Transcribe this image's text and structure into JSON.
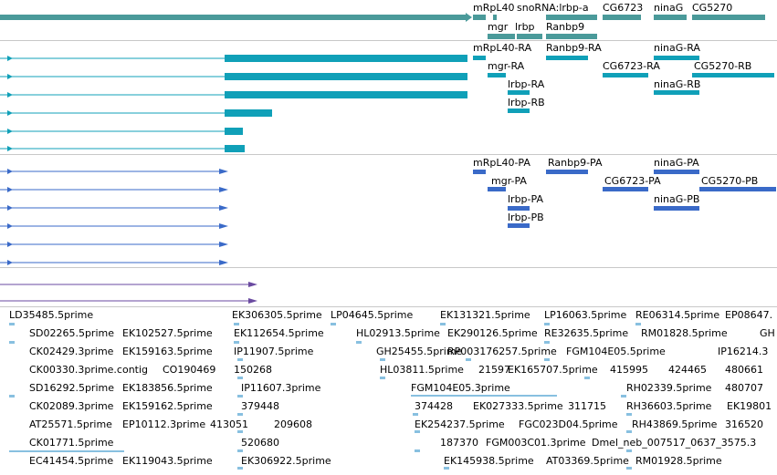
{
  "tracks": {
    "genes": {
      "color": "#4a9a9a",
      "labels": {
        "mrpl40": "mRpL40",
        "snorna": "snoRNA:lrbp-a",
        "cg6723": "CG6723",
        "ninag": "ninaG",
        "cg5270": "CG5270",
        "mgr": "mgr",
        "lrbp": "lrbp",
        "ranbp9": "Ranbp9"
      }
    },
    "transcripts_rna": {
      "color": "#10a0b8",
      "labels": {
        "mrpl40_ra": "mRpL40-RA",
        "ranbp9_ra": "Ranbp9-RA",
        "ninag_ra": "ninaG-RA",
        "mgr_ra": "mgr-RA",
        "cg6723_ra": "CG6723-RA",
        "cg5270_rb": "CG5270-RB",
        "lrbp_ra": "lrbp-RA",
        "ninag_rb": "ninaG-RB",
        "lrbp_rb": "lrbp-RB"
      }
    },
    "transcripts_protein": {
      "color": "#3a6ac8",
      "labels": {
        "mrpl40_pa": "mRpL40-PA",
        "ranbp9_pa": "Ranbp9-PA",
        "ninag_pa": "ninaG-PA",
        "mgr_pa": "mgr-PA",
        "cg6723_pa": "CG6723-PA",
        "cg5270_pb": "CG5270-PB",
        "lrbp_pa": "lrbp-PA",
        "ninag_pb": "ninaG-PB",
        "lrbp_pb": "lrbp-PB"
      }
    },
    "other": {
      "color": "#6a4aa0"
    },
    "ests": {
      "color": "#88c0e0",
      "labels": [
        "LD35485.5prime",
        "EK306305.5prime",
        "LP04645.5prime",
        "EK131321.5prime",
        "LP16063.5prime",
        "RE06314.5prime",
        "EP08647.",
        "SD02265.5prime",
        "EK102527.5prime",
        "EK112654.5prime",
        "HL02913.5prime",
        "EK290126.5prime",
        "RE32635.5prime",
        "RM01828.5prime",
        "GH",
        "CK02429.3prime",
        "EK159163.5prime",
        "IP11907.5prime",
        "GH25455.5prime",
        "RP003176257.5prime",
        "FGM104E05.5prime",
        "IP16214.3",
        "CK00330.3prime.contig",
        "CO190469",
        "150268",
        "HL03811.5prime",
        "21597",
        "EK165707.5prime",
        "415995",
        "424465",
        "480661",
        "SD16292.5prime",
        "EK183856.5prime",
        "IP11607.3prime",
        "FGM104E05.3prime",
        "RH02339.5prime",
        "480707",
        "CK02089.3prime",
        "EK159162.5prime",
        "379448",
        "374428",
        "EK027333.5prime",
        "311715",
        "RH36603.5prime",
        "EK19801",
        "AT25571.5prime",
        "EP10112.3prime",
        "413051",
        "209608",
        "EK254237.5prime",
        "FGC023D04.5prime",
        "RH43869.5prime",
        "316520",
        "CK01771.5prime",
        "520680",
        "187370",
        "FGM003C01.3prime",
        "Dmel_neb_007517_0637_3575.3",
        "EC41454.5prime",
        "EK119043.5prime",
        "EK306922.5prime",
        "EK145938.5prime",
        "AT03369.5prime",
        "RM01928.5prime"
      ]
    }
  }
}
